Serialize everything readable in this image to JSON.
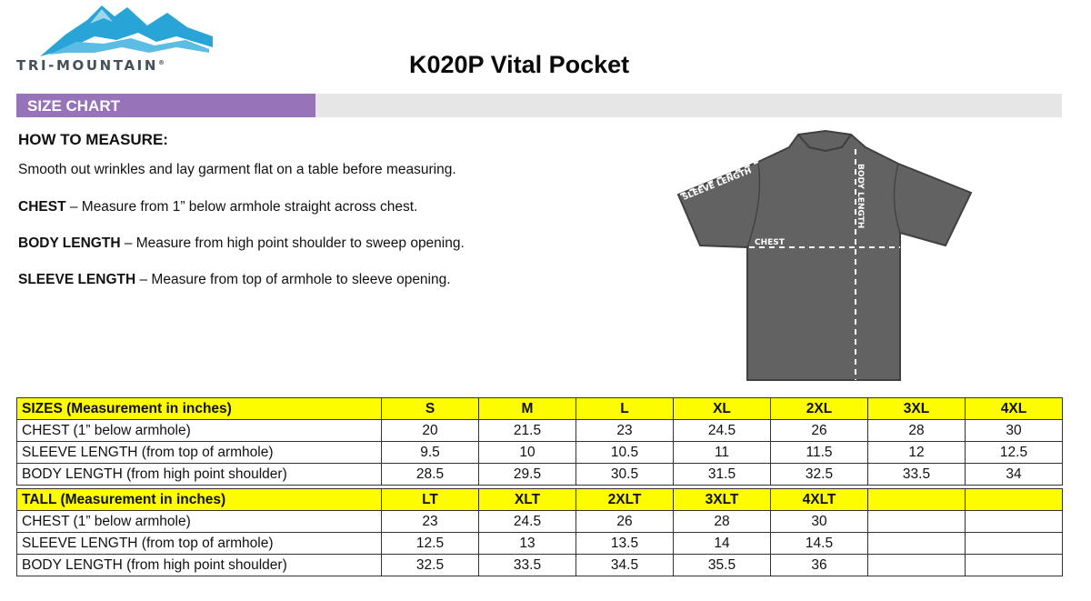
{
  "brand": {
    "name": "TRI-MOUNTAIN",
    "mark": "®"
  },
  "title": "K020P Vital Pocket",
  "banner": {
    "label": "SIZE CHART"
  },
  "how_to": {
    "heading": "HOW TO MEASURE:",
    "intro": "Smooth out wrinkles and lay garment flat on a table before measuring.",
    "items": [
      {
        "term": "CHEST",
        "text": " – Measure from 1” below armhole straight across chest."
      },
      {
        "term": "BODY LENGTH",
        "text": " – Measure from high point shoulder to sweep opening."
      },
      {
        "term": "SLEEVE LENGTH",
        "text": " – Measure from top of armhole to sleeve opening."
      }
    ]
  },
  "diagram": {
    "sleeve_label": "SLEEVE LENGTH",
    "body_label": "BODY LENGTH",
    "chest_label": "CHEST",
    "shirt_color": "#626262"
  },
  "sizes_table": {
    "header": [
      "SIZES (Measurement in inches)",
      "S",
      "M",
      "L",
      "XL",
      "2XL",
      "3XL",
      "4XL"
    ],
    "rows": [
      [
        "CHEST (1” below armhole)",
        "20",
        "21.5",
        "23",
        "24.5",
        "26",
        "28",
        "30"
      ],
      [
        "SLEEVE LENGTH (from top of armhole)",
        "9.5",
        "10",
        "10.5",
        "11",
        "11.5",
        "12",
        "12.5"
      ],
      [
        "BODY LENGTH (from high point shoulder)",
        "28.5",
        "29.5",
        "30.5",
        "31.5",
        "32.5",
        "33.5",
        "34"
      ]
    ]
  },
  "tall_table": {
    "header": [
      "TALL (Measurement in inches)",
      "LT",
      "XLT",
      "2XLT",
      "3XLT",
      "4XLT",
      "",
      ""
    ],
    "rows": [
      [
        "CHEST (1” below armhole)",
        "23",
        "24.5",
        "26",
        "28",
        "30",
        "",
        ""
      ],
      [
        "SLEEVE LENGTH (from top of armhole)",
        "12.5",
        "13",
        "13.5",
        "14",
        "14.5",
        "",
        ""
      ],
      [
        "BODY LENGTH (from high point shoulder)",
        "32.5",
        "33.5",
        "34.5",
        "35.5",
        "36",
        "",
        ""
      ]
    ]
  },
  "colors": {
    "header_yellow": "#fdfd00",
    "banner_purple": "#9773b9",
    "logo_blue": "#29a4d6"
  }
}
